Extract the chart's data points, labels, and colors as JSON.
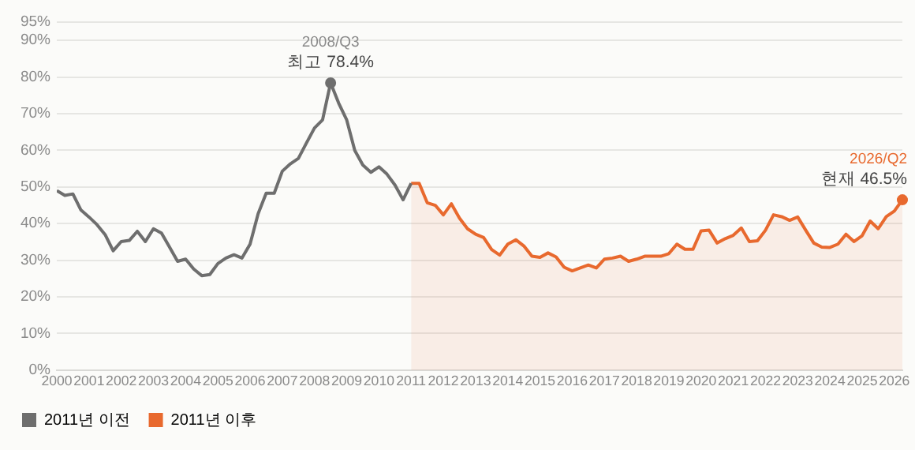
{
  "chart_data": {
    "type": "line",
    "xlim": [
      2000,
      2026.25
    ],
    "xticks": [
      2000,
      2001,
      2002,
      2003,
      2004,
      2005,
      2006,
      2007,
      2008,
      2009,
      2010,
      2011,
      2012,
      2013,
      2014,
      2015,
      2016,
      2017,
      2018,
      2019,
      2020,
      2021,
      2022,
      2023,
      2024,
      2025,
      2026
    ],
    "ylim": [
      0,
      95
    ],
    "yticks": [
      {
        "value": 0,
        "label": "0%"
      },
      {
        "value": 10,
        "label": "10%"
      },
      {
        "value": 20,
        "label": "20%"
      },
      {
        "value": 30,
        "label": "30%"
      },
      {
        "value": 40,
        "label": "40%"
      },
      {
        "value": 50,
        "label": "50%"
      },
      {
        "value": 60,
        "label": "60%"
      },
      {
        "value": 70,
        "label": "70%"
      },
      {
        "value": 80,
        "label": "80%"
      },
      {
        "value": 90,
        "label": "90%"
      },
      {
        "value": 95,
        "label": "95%"
      }
    ],
    "grid": "y",
    "legend": "bottom left",
    "marker": "none",
    "series": [
      {
        "name": "2011년 이전",
        "type": "line",
        "color": "#6e6e6e",
        "x": [
          2000,
          2000.25,
          2000.5,
          2000.75,
          2001,
          2001.25,
          2001.5,
          2001.75,
          2002,
          2002.25,
          2002.5,
          2002.75,
          2003,
          2003.25,
          2003.5,
          2003.75,
          2004,
          2004.25,
          2004.5,
          2004.75,
          2005,
          2005.25,
          2005.5,
          2005.75,
          2006,
          2006.25,
          2006.5,
          2006.75,
          2007,
          2007.25,
          2007.5,
          2007.75,
          2008,
          2008.25,
          2008.5,
          2008.75,
          2009,
          2009.25,
          2009.5,
          2009.75,
          2010,
          2010.25,
          2010.5,
          2010.75,
          2011
        ],
        "values": [
          49.0,
          47.7,
          48.1,
          43.7,
          41.8,
          39.7,
          37.0,
          32.6,
          35.1,
          35.4,
          37.9,
          35.1,
          38.6,
          37.4,
          33.6,
          29.7,
          30.3,
          27.6,
          25.8,
          26.1,
          29.1,
          30.6,
          31.5,
          30.6,
          34.4,
          42.7,
          48.3,
          48.3,
          54.3,
          56.3,
          57.8,
          62.0,
          66.1,
          68.3,
          78.4,
          72.9,
          68.3,
          60.0,
          56.0,
          54.0,
          55.5,
          53.5,
          50.5,
          46.5,
          51.0
        ]
      },
      {
        "name": "2011년 이후",
        "type": "area",
        "color": "#e8692e",
        "x": [
          2011,
          2011.25,
          2011.5,
          2011.75,
          2012,
          2012.25,
          2012.5,
          2012.75,
          2013,
          2013.25,
          2013.5,
          2013.75,
          2014,
          2014.25,
          2014.5,
          2014.75,
          2015,
          2015.25,
          2015.5,
          2015.75,
          2016,
          2016.25,
          2016.5,
          2016.75,
          2017,
          2017.25,
          2017.5,
          2017.75,
          2018,
          2018.25,
          2018.5,
          2018.75,
          2019,
          2019.25,
          2019.5,
          2019.75,
          2020,
          2020.25,
          2020.5,
          2020.75,
          2021,
          2021.25,
          2021.5,
          2021.75,
          2022,
          2022.25,
          2022.5,
          2022.75,
          2023,
          2023.25,
          2023.5,
          2023.75,
          2024,
          2024.25,
          2024.5,
          2024.75,
          2025,
          2025.25,
          2025.5,
          2025.75,
          2026,
          2026.25
        ],
        "values": [
          51.0,
          51.0,
          45.7,
          45.0,
          42.4,
          45.4,
          41.5,
          38.6,
          37.1,
          36.2,
          32.9,
          31.4,
          34.4,
          35.6,
          33.9,
          31.1,
          30.8,
          32.0,
          30.9,
          28.1,
          27.1,
          27.9,
          28.7,
          27.9,
          30.3,
          30.6,
          31.1,
          29.7,
          30.3,
          31.1,
          31.1,
          31.1,
          31.8,
          34.4,
          33.0,
          33.0,
          38.0,
          38.2,
          34.7,
          35.9,
          36.8,
          38.8,
          35.1,
          35.3,
          38.2,
          42.4,
          41.9,
          40.9,
          41.8,
          38.2,
          34.7,
          33.6,
          33.5,
          34.4,
          37.1,
          35.1,
          36.7,
          40.7,
          38.6,
          41.9,
          43.4,
          46.5
        ]
      }
    ],
    "annotations": [
      {
        "text": "2008/Q3\n최고 78.4%",
        "x": 2008.5,
        "y": 78.4
      },
      {
        "text": "2026/Q2\n현재 46.5%",
        "x": 2026.25,
        "y": 46.5
      }
    ]
  }
}
